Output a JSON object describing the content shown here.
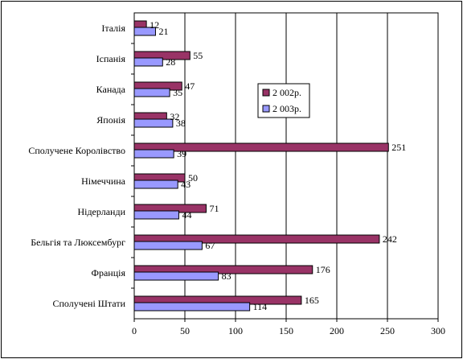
{
  "chart_data": {
    "type": "bar",
    "orientation": "horizontal",
    "categories": [
      "Італія",
      "Іспанія",
      "Канада",
      "Японія",
      "Сполучене Королівство",
      "Німеччина",
      "Нідерланди",
      "Бельгія та Люксембург",
      "Франція",
      "Сполучені Штати"
    ],
    "series": [
      {
        "name": "2 002р.",
        "color": "#993366",
        "values": [
          12,
          55,
          47,
          32,
          251,
          50,
          71,
          242,
          176,
          165
        ]
      },
      {
        "name": "2 003р.",
        "color": "#9999ff",
        "values": [
          21,
          28,
          35,
          38,
          39,
          43,
          44,
          67,
          83,
          114
        ]
      }
    ],
    "xlim": [
      0,
      300
    ],
    "xticks": [
      0,
      50,
      100,
      150,
      200,
      250,
      300
    ],
    "grid": "vertical",
    "legend": "upper-middle-right",
    "title": "",
    "xlabel": "",
    "ylabel": ""
  }
}
